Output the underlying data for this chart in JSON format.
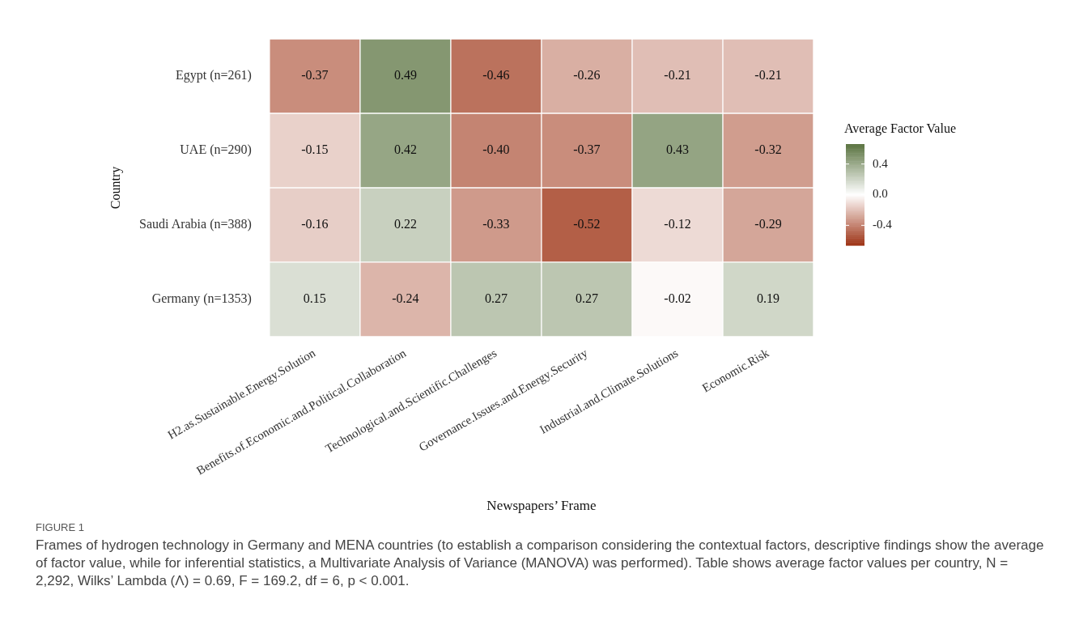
{
  "chart_data": {
    "type": "heatmap",
    "xlabel": "Newspapers’ Frame",
    "ylabel": "Country",
    "clabel": "Average Factor Value",
    "categories": [
      "H2.as.Sustainable.Energy.Solution",
      "Benefits.of.Economic.and.Political.Collaboration",
      "Technological.and.Scientific.Challenges",
      "Governance.Issues.and.Energy.Security",
      "Industrial.and.Climate.Solutions",
      "Economic.Risk"
    ],
    "y_categories": [
      "Egypt (n=261)",
      "UAE (n=290)",
      "Saudi Arabia (n=388)",
      "Germany (n=1353)"
    ],
    "cells": [
      [
        -0.37,
        0.49,
        -0.46,
        -0.26,
        -0.21,
        -0.21
      ],
      [
        -0.15,
        0.42,
        -0.4,
        -0.37,
        0.43,
        -0.32
      ],
      [
        -0.16,
        0.22,
        -0.33,
        -0.52,
        -0.12,
        -0.29
      ],
      [
        0.15,
        -0.24,
        0.27,
        0.27,
        -0.02,
        0.19
      ]
    ],
    "cell_labels": [
      [
        "-0.37",
        "0.49",
        "-0.46",
        "-0.26",
        "-0.21",
        "-0.21"
      ],
      [
        "-0.15",
        "0.42",
        "-0.40",
        "-0.37",
        "0.43",
        "-0.32"
      ],
      [
        "-0.16",
        "0.22",
        "-0.33",
        "-0.52",
        "-0.12",
        "-0.29"
      ],
      [
        "0.15",
        "-0.24",
        "0.27",
        "0.27",
        "-0.02",
        "0.19"
      ]
    ],
    "clim": [
      -0.66,
      0.66
    ],
    "cticks": [
      {
        "value": 0.4,
        "label": "0.4"
      },
      {
        "value": 0,
        "label": "0.0"
      },
      {
        "value": -0.4,
        "label": "-0.4"
      }
    ],
    "annotations": [
      "FIGURE 1",
      "Frames of hydrogen technology in Germany and MENA countries (to establish a comparison considering the contextual factors, descriptive findings show the average of factor value, while for inferential statistics, a Multivariate Analysis of Variance (MANOVA) was performed). Table shows average factor values per country, N = 2,292, Wilks’ Lambda (Λ) = 0.69, F = 169.2, df = 6, p < 0.001."
    ]
  }
}
